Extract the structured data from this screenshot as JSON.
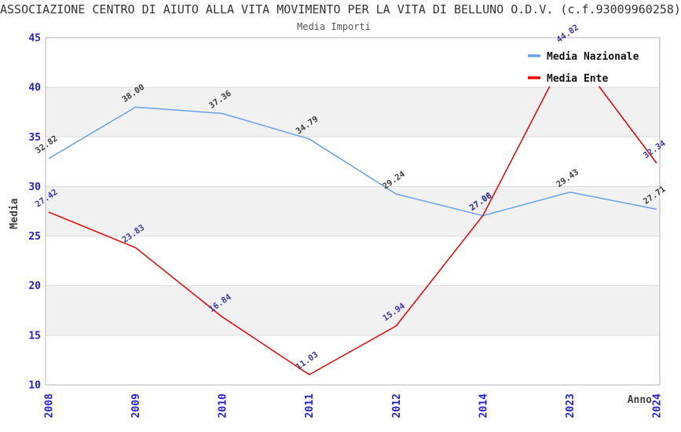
{
  "title": "ASSOCIAZIONE CENTRO DI AIUTO ALLA VITA MOVIMENTO PER LA VITA DI BELLUNO O.D.V. (c.f.93009960258)",
  "subtitle": "Media Importi",
  "chart_data": {
    "type": "line",
    "categories": [
      "2008",
      "2009",
      "2010",
      "2011",
      "2012",
      "2014",
      "2023",
      "2024"
    ],
    "series": [
      {
        "name": "Media Nazionale",
        "color": "#69a1e6",
        "label_color": "#3d3d3d",
        "values": [
          32.82,
          38.0,
          37.36,
          34.79,
          29.24,
          27.06,
          29.43,
          27.71
        ]
      },
      {
        "name": "Media Ente",
        "color": "#ee0000",
        "label_color": "#3939a8",
        "values": [
          27.42,
          23.83,
          16.84,
          11.03,
          15.94,
          27.08,
          44.02,
          32.34
        ]
      }
    ],
    "xlabel": "Anno",
    "ylabel": "Media",
    "ylim": [
      10,
      45
    ],
    "yticks": [
      10,
      15,
      20,
      25,
      30,
      35,
      40,
      45
    ],
    "bands": [
      [
        15,
        20
      ],
      [
        25,
        30
      ],
      [
        35,
        40
      ]
    ],
    "grid": "horizontal",
    "legend_position": "top-right",
    "point_label_decimals": 2
  },
  "colors": {
    "title": "#333333",
    "subtitle": "#555555",
    "tick_label": "#1f1fd6",
    "axis_title": "#404040",
    "band": "#f1f1f1",
    "gridline": "#dcdcdc",
    "plot_border": "#b5b5b5",
    "legend_bg": "#ffffff",
    "legend_text": "#111111"
  }
}
